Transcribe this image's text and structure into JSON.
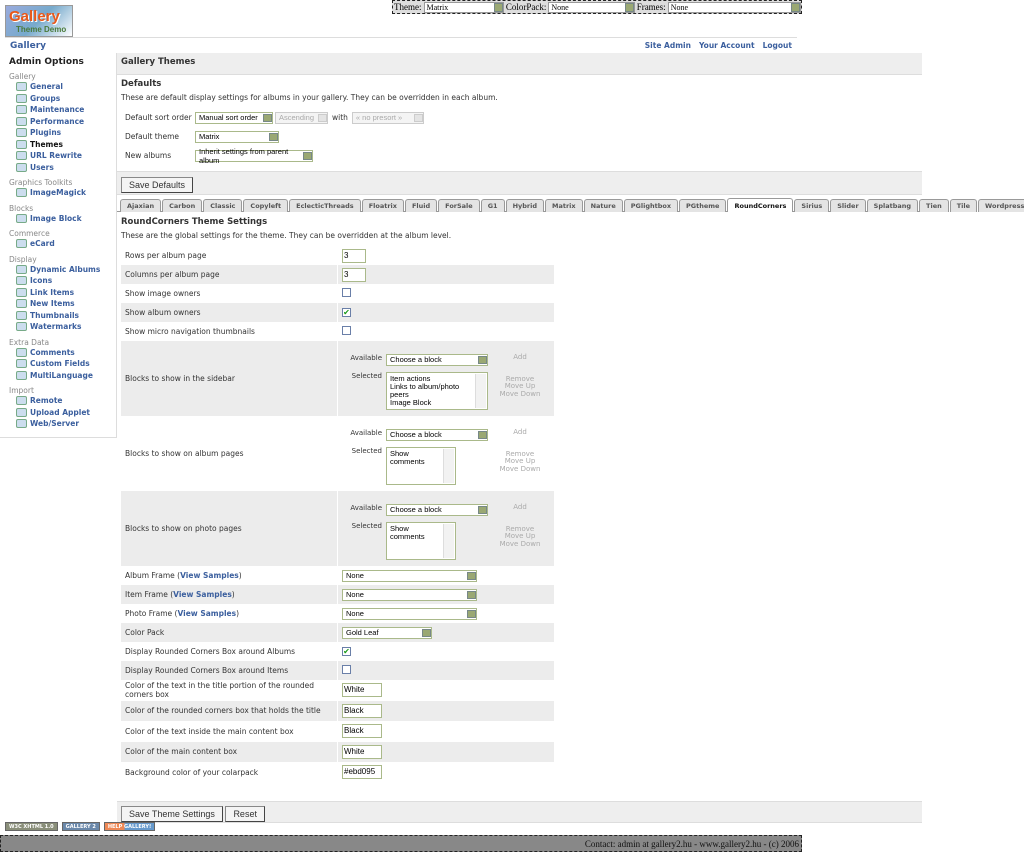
{
  "logo": {
    "text": "Gallery",
    "sub": "Theme Demo"
  },
  "topbar": {
    "theme_label": "Theme:",
    "theme_value": "Matrix",
    "colorpack_label": "ColorPack:",
    "colorpack_value": "None",
    "frames_label": "Frames:",
    "frames_value": "None"
  },
  "header": {
    "title": "Gallery",
    "links": [
      "Site Admin",
      "Your Account",
      "Logout"
    ]
  },
  "sidebar": {
    "title": "Admin Options",
    "groups": [
      {
        "label": "Gallery",
        "items": [
          "General",
          "Groups",
          "Maintenance",
          "Performance",
          "Plugins",
          "Themes",
          "URL Rewrite",
          "Users"
        ]
      },
      {
        "label": "Graphics Toolkits",
        "items": [
          "ImageMagick"
        ]
      },
      {
        "label": "Blocks",
        "items": [
          "Image Block"
        ]
      },
      {
        "label": "Commerce",
        "items": [
          "eCard"
        ]
      },
      {
        "label": "Display",
        "items": [
          "Dynamic Albums",
          "Icons",
          "Link Items",
          "New Items",
          "Thumbnails",
          "Watermarks"
        ]
      },
      {
        "label": "Extra Data",
        "items": [
          "Comments",
          "Custom Fields",
          "MultiLanguage"
        ]
      },
      {
        "label": "Import",
        "items": [
          "Remote",
          "Upload Applet",
          "Web/Server"
        ]
      }
    ],
    "current": "Themes"
  },
  "main": {
    "title": "Gallery Themes",
    "defaults": {
      "heading": "Defaults",
      "desc": "These are default display settings for albums in your gallery. They can be overridden in each album.",
      "sort_label": "Default sort order",
      "sort_value": "Manual sort order",
      "direction_value": "Ascending",
      "with_label": "with",
      "presort_value": "« no presort »",
      "theme_label": "Default theme",
      "theme_value": "Matrix",
      "new_albums_label": "New albums",
      "new_albums_value": "Inherit settings from parent album",
      "save_label": "Save Defaults"
    },
    "tabs": [
      "Ajaxian",
      "Carbon",
      "Classic",
      "Copyleft",
      "EclecticThreads",
      "Floatrix",
      "Fluid",
      "ForSale",
      "G1",
      "Hybrid",
      "Matrix",
      "Nature",
      "PGlightbox",
      "PGtheme",
      "RoundCorners",
      "Sirius",
      "Slider",
      "Splatbang",
      "Tien",
      "Tile",
      "WordpressEmbedded"
    ],
    "active_tab": "RoundCorners",
    "theme_settings": {
      "heading": "RoundCorners Theme Settings",
      "desc": "These are the global settings for the theme. They can be overridden at the album level.",
      "block_labels": {
        "available": "Available",
        "selected": "Selected",
        "choose": "Choose a block",
        "add": "Add",
        "remove": "Remove",
        "move_up": "Move Up",
        "move_down": "Move Down"
      },
      "view_samples": "View Samples",
      "rows": [
        {
          "label": "Rows per album page",
          "type": "text",
          "value": "3"
        },
        {
          "label": "Columns per album page",
          "type": "text",
          "value": "3"
        },
        {
          "label": "Show image owners",
          "type": "checkbox",
          "checked": false
        },
        {
          "label": "Show album owners",
          "type": "checkbox",
          "checked": true
        },
        {
          "label": "Show micro navigation thumbnails",
          "type": "checkbox",
          "checked": false
        },
        {
          "label": "Blocks to show in the sidebar",
          "type": "blocks",
          "selected": [
            "Item actions",
            "Links to album/photo peers",
            "Image Block"
          ]
        },
        {
          "label": "Blocks to show on album pages",
          "type": "blocks",
          "selected": [
            "Show comments"
          ]
        },
        {
          "label": "Blocks to show on photo pages",
          "type": "blocks",
          "selected": [
            "Show comments"
          ]
        },
        {
          "label": "Album Frame",
          "type": "frame",
          "value": "None"
        },
        {
          "label": "Item Frame",
          "type": "frame",
          "value": "None"
        },
        {
          "label": "Photo Frame",
          "type": "frame",
          "value": "None"
        },
        {
          "label": "Color Pack",
          "type": "select",
          "value": "Gold Leaf"
        },
        {
          "label": "Display Rounded Corners Box around Albums",
          "type": "checkbox",
          "checked": true
        },
        {
          "label": "Display Rounded Corners Box around Items",
          "type": "checkbox",
          "checked": false
        },
        {
          "label": "Color of the text in the title portion of the rounded corners box",
          "type": "text",
          "value": "White"
        },
        {
          "label": "Color of the rounded corners box that holds the title",
          "type": "text",
          "value": "Black"
        },
        {
          "label": "Color of the text inside the main content box",
          "type": "text",
          "value": "Black"
        },
        {
          "label": "Color of the main content box",
          "type": "text",
          "value": "White"
        },
        {
          "label": "Background color of your colarpack",
          "type": "text",
          "value": "#ebd095"
        }
      ]
    },
    "save_theme_label": "Save Theme Settings",
    "reset_label": "Reset"
  },
  "badges": [
    "W3C XHTML 1.0",
    "GALLERY 2",
    "HELP GALLERY!"
  ],
  "footer": {
    "text": "Contact: admin at gallery2.hu - www.gallery2.hu - (c) 2006"
  },
  "colors": {
    "link": "#3b5f9e",
    "band": "#eeeeee",
    "select_border": "#aab98a",
    "footer": "#888888"
  }
}
